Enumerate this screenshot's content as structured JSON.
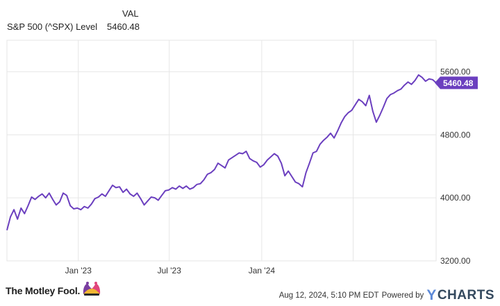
{
  "legend": {
    "column_header": "VAL",
    "series_name": "S&P 500 (^SPX) Level",
    "series_value": "5460.48"
  },
  "chart_data": {
    "type": "line",
    "title": "",
    "xlabel": "",
    "ylabel": "",
    "ylim": [
      3200,
      6000
    ],
    "y_ticks": [
      "3200.00",
      "4000.00",
      "4800.00",
      "5600.00"
    ],
    "x_ticks": [
      {
        "date": "2023-01-01",
        "label": "Jan '23"
      },
      {
        "date": "2023-07-01",
        "label": "Jul '23"
      },
      {
        "date": "2024-01-01",
        "label": "Jan '24"
      },
      {
        "date": "2024-07-01",
        "label": ""
      }
    ],
    "grid": true,
    "line_color": "#6b3fbf",
    "last_value_label": "5460.48",
    "series": [
      {
        "name": "S&P 500 (^SPX) Level",
        "points": [
          [
            "2022-08-12",
            3590
          ],
          [
            "2022-08-19",
            3760
          ],
          [
            "2022-08-26",
            3850
          ],
          [
            "2022-09-02",
            3730
          ],
          [
            "2022-09-09",
            3870
          ],
          [
            "2022-09-16",
            3800
          ],
          [
            "2022-09-23",
            3900
          ],
          [
            "2022-09-30",
            4010
          ],
          [
            "2022-10-07",
            3980
          ],
          [
            "2022-10-14",
            4020
          ],
          [
            "2022-10-21",
            4050
          ],
          [
            "2022-10-28",
            4000
          ],
          [
            "2022-11-04",
            4060
          ],
          [
            "2022-11-11",
            3980
          ],
          [
            "2022-11-18",
            3910
          ],
          [
            "2022-11-25",
            3950
          ],
          [
            "2022-12-02",
            4060
          ],
          [
            "2022-12-09",
            4030
          ],
          [
            "2022-12-16",
            3900
          ],
          [
            "2022-12-23",
            3860
          ],
          [
            "2022-12-30",
            3870
          ],
          [
            "2023-01-06",
            3850
          ],
          [
            "2023-01-13",
            3890
          ],
          [
            "2023-01-20",
            3870
          ],
          [
            "2023-01-27",
            3920
          ],
          [
            "2023-02-03",
            3990
          ],
          [
            "2023-02-10",
            4010
          ],
          [
            "2023-02-17",
            4050
          ],
          [
            "2023-02-24",
            4020
          ],
          [
            "2023-03-03",
            4090
          ],
          [
            "2023-03-10",
            4160
          ],
          [
            "2023-03-17",
            4130
          ],
          [
            "2023-03-24",
            4140
          ],
          [
            "2023-03-31",
            4070
          ],
          [
            "2023-04-07",
            4110
          ],
          [
            "2023-04-14",
            4050
          ],
          [
            "2023-04-21",
            4020
          ],
          [
            "2023-04-28",
            4060
          ],
          [
            "2023-05-05",
            3990
          ],
          [
            "2023-05-12",
            3910
          ],
          [
            "2023-05-19",
            3960
          ],
          [
            "2023-05-26",
            4010
          ],
          [
            "2023-06-02",
            4000
          ],
          [
            "2023-06-09",
            3970
          ],
          [
            "2023-06-16",
            4030
          ],
          [
            "2023-06-23",
            4090
          ],
          [
            "2023-06-30",
            4100
          ],
          [
            "2023-07-07",
            4130
          ],
          [
            "2023-07-14",
            4110
          ],
          [
            "2023-07-21",
            4150
          ],
          [
            "2023-07-28",
            4120
          ],
          [
            "2023-08-04",
            4150
          ],
          [
            "2023-08-11",
            4110
          ],
          [
            "2023-08-18",
            4130
          ],
          [
            "2023-08-25",
            4170
          ],
          [
            "2023-09-01",
            4180
          ],
          [
            "2023-09-08",
            4230
          ],
          [
            "2023-09-15",
            4300
          ],
          [
            "2023-09-22",
            4320
          ],
          [
            "2023-09-29",
            4360
          ],
          [
            "2023-10-06",
            4440
          ],
          [
            "2023-10-13",
            4410
          ],
          [
            "2023-10-20",
            4380
          ],
          [
            "2023-10-27",
            4480
          ],
          [
            "2023-11-03",
            4510
          ],
          [
            "2023-11-10",
            4540
          ],
          [
            "2023-11-17",
            4570
          ],
          [
            "2023-11-24",
            4560
          ],
          [
            "2023-12-01",
            4590
          ],
          [
            "2023-12-08",
            4500
          ],
          [
            "2023-12-15",
            4470
          ],
          [
            "2023-12-22",
            4450
          ],
          [
            "2023-12-29",
            4390
          ],
          [
            "2024-01-05",
            4420
          ],
          [
            "2024-01-12",
            4480
          ],
          [
            "2024-01-19",
            4520
          ],
          [
            "2024-01-26",
            4560
          ],
          [
            "2024-02-02",
            4530
          ],
          [
            "2024-02-09",
            4440
          ],
          [
            "2024-02-16",
            4280
          ],
          [
            "2024-02-23",
            4340
          ],
          [
            "2024-03-01",
            4270
          ],
          [
            "2024-03-08",
            4200
          ],
          [
            "2024-03-15",
            4180
          ],
          [
            "2024-03-22",
            4140
          ],
          [
            "2024-03-29",
            4320
          ],
          [
            "2024-04-05",
            4440
          ],
          [
            "2024-04-12",
            4570
          ],
          [
            "2024-04-19",
            4590
          ],
          [
            "2024-04-26",
            4680
          ],
          [
            "2024-05-03",
            4730
          ],
          [
            "2024-05-10",
            4770
          ],
          [
            "2024-05-17",
            4820
          ],
          [
            "2024-05-24",
            4760
          ],
          [
            "2024-05-31",
            4850
          ],
          [
            "2024-06-07",
            4950
          ],
          [
            "2024-06-14",
            5030
          ],
          [
            "2024-06-21",
            5080
          ],
          [
            "2024-06-28",
            5110
          ],
          [
            "2024-07-05",
            5180
          ],
          [
            "2024-07-12",
            5250
          ],
          [
            "2024-07-19",
            5220
          ],
          [
            "2024-07-26",
            5170
          ],
          [
            "2024-08-02",
            5300
          ],
          [
            "2024-08-09",
            5100
          ],
          [
            "2024-08-16",
            4960
          ],
          [
            "2024-08-23",
            5050
          ],
          [
            "2024-08-30",
            5150
          ],
          [
            "2024-09-06",
            5260
          ],
          [
            "2024-09-13",
            5310
          ],
          [
            "2024-09-20",
            5330
          ],
          [
            "2024-09-27",
            5360
          ],
          [
            "2024-10-04",
            5380
          ],
          [
            "2024-10-11",
            5430
          ],
          [
            "2024-10-18",
            5470
          ],
          [
            "2024-10-25",
            5440
          ],
          [
            "2024-11-01",
            5490
          ],
          [
            "2024-11-08",
            5560
          ],
          [
            "2024-11-15",
            5530
          ],
          [
            "2024-11-22",
            5480
          ],
          [
            "2024-11-29",
            5510
          ],
          [
            "2024-12-06",
            5500
          ],
          [
            "2024-12-13",
            5460
          ]
        ]
      }
    ]
  },
  "footer": {
    "brand": "The Motley Fool.",
    "timestamp": "Aug 12, 2024, 5:10 PM EDT",
    "powered_by": "Powered by",
    "provider_initial": "Y",
    "provider_rest": "CHARTS"
  },
  "colors": {
    "line": "#6b3fbf",
    "grid": "#e6e6e6",
    "provider": "#34495e",
    "provider_accent": "#5d8ad8"
  }
}
